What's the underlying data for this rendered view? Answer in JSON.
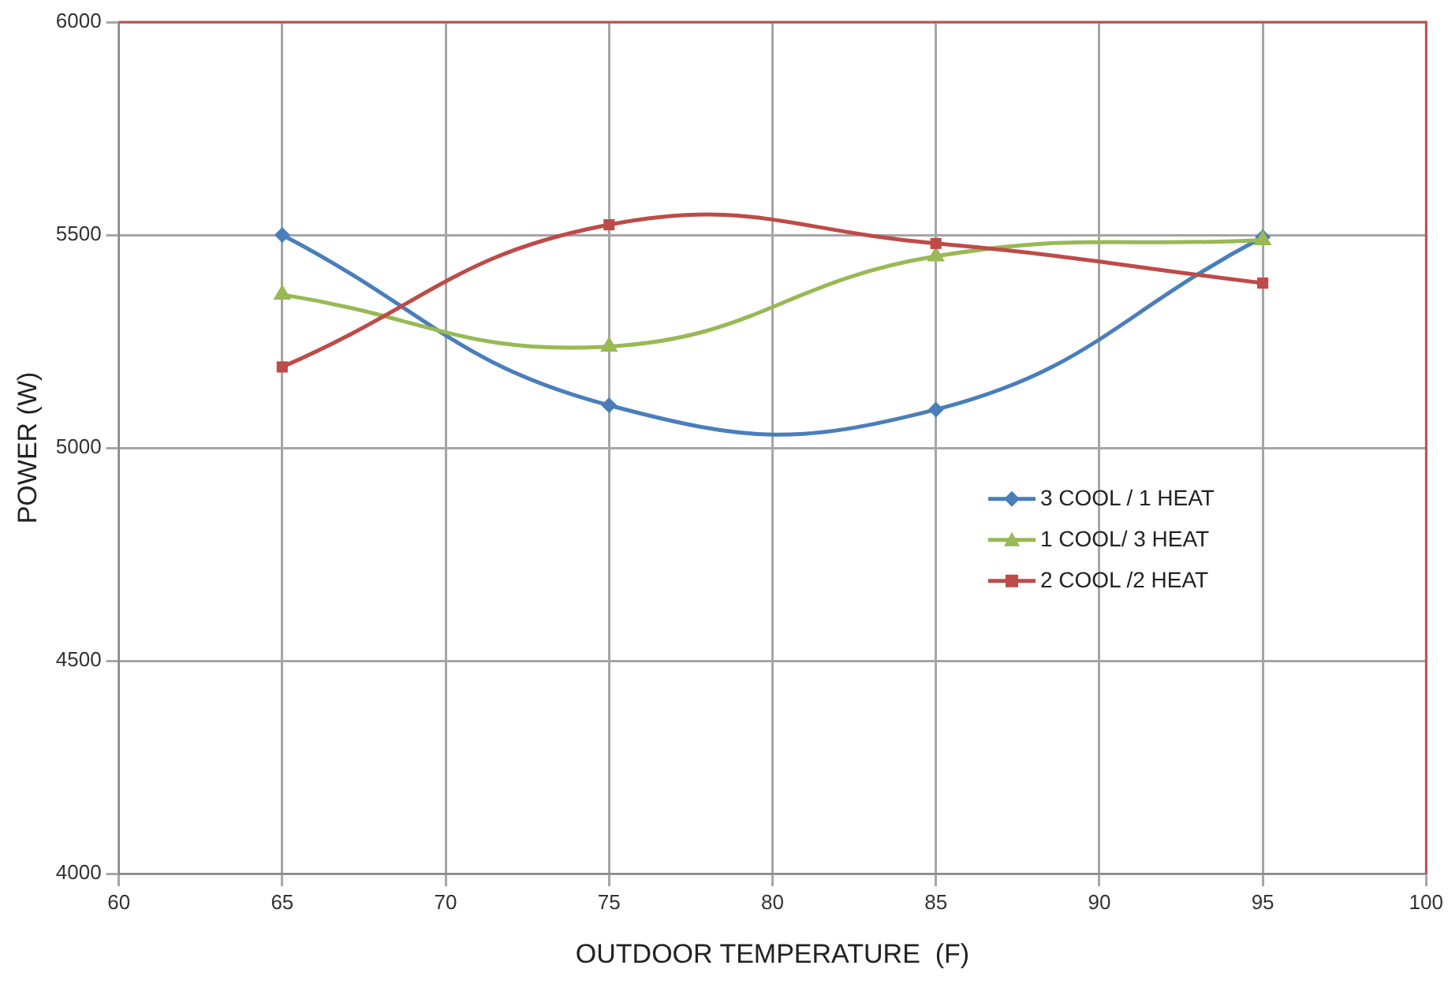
{
  "chart_data": {
    "type": "line",
    "xlabel": "OUTDOOR TEMPERATURE  (F)",
    "ylabel": "POWER (W)",
    "x": [
      65,
      75,
      85,
      95
    ],
    "series": [
      {
        "name": "3 COOL / 1 HEAT",
        "color": "#4a7ebb",
        "marker": "diamond",
        "values": [
          5500,
          5100,
          5090,
          5495
        ]
      },
      {
        "name": "1 COOL/ 3 HEAT",
        "color": "#98b954",
        "marker": "triangle",
        "values": [
          5360,
          5238,
          5450,
          5488
        ]
      },
      {
        "name": "2 COOL /2 HEAT",
        "color": "#be4b48",
        "marker": "square",
        "values": [
          5190,
          5524,
          5480,
          5387
        ]
      }
    ],
    "xlim": [
      60,
      100
    ],
    "xticks": [
      60,
      65,
      70,
      75,
      80,
      85,
      90,
      95,
      100
    ],
    "ylim": [
      4000,
      6000
    ],
    "yticks": [
      4000,
      4500,
      5000,
      5500,
      6000
    ],
    "grid": true,
    "legend": "right",
    "line_style": "solid"
  }
}
